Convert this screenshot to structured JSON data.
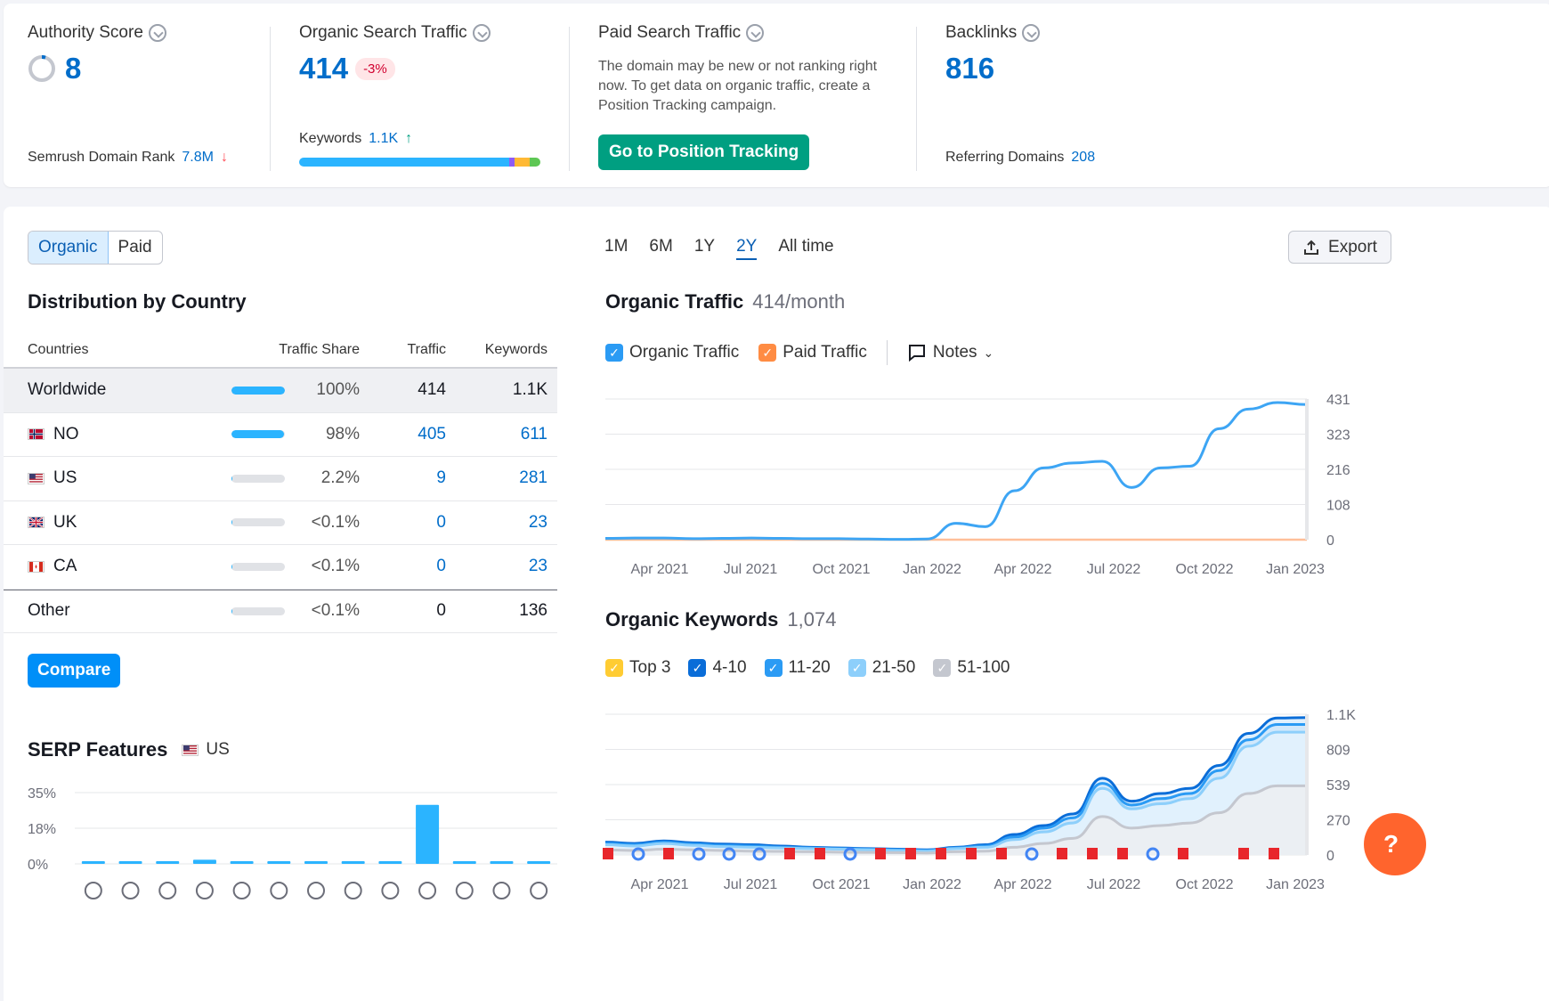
{
  "stats": {
    "authority": {
      "label": "Authority Score",
      "value": "8",
      "rank_label": "Semrush Domain Rank",
      "rank_value": "7.8M"
    },
    "organic": {
      "label": "Organic Search Traffic",
      "value": "414",
      "change": "-3%",
      "keywords_label": "Keywords",
      "keywords_value": "1.1K"
    },
    "paid": {
      "label": "Paid Search Traffic",
      "message": "The domain may be new or not ranking right now. To get data on organic traffic, create a Position Tracking campaign.",
      "button": "Go to Position Tracking"
    },
    "backlinks": {
      "label": "Backlinks",
      "value": "816",
      "ref_label": "Referring Domains",
      "ref_value": "208"
    }
  },
  "toggle": {
    "organic": "Organic",
    "paid": "Paid"
  },
  "distribution": {
    "title": "Distribution by Country",
    "headers": {
      "countries": "Countries",
      "share": "Traffic Share",
      "traffic": "Traffic",
      "keywords": "Keywords"
    },
    "rows": [
      {
        "name": "Worldwide",
        "share": "100%",
        "traffic": "414",
        "keywords": "1.1K",
        "fill": 1.0
      },
      {
        "name": "NO",
        "share": "98%",
        "traffic": "405",
        "keywords": "611",
        "fill": 0.98
      },
      {
        "name": "US",
        "share": "2.2%",
        "traffic": "9",
        "keywords": "281",
        "fill": 0.022
      },
      {
        "name": "UK",
        "share": "<0.1%",
        "traffic": "0",
        "keywords": "23",
        "fill": 0.001
      },
      {
        "name": "CA",
        "share": "<0.1%",
        "traffic": "0",
        "keywords": "23",
        "fill": 0.001
      },
      {
        "name": "Other",
        "share": "<0.1%",
        "traffic": "0",
        "keywords": "136",
        "fill": 0.001
      }
    ],
    "compare": "Compare"
  },
  "serp": {
    "title": "SERP Features",
    "country": "US",
    "ticks": [
      "35%",
      "18%",
      "0%"
    ],
    "values": [
      1,
      1,
      1,
      2,
      1,
      1,
      1,
      1,
      1,
      29,
      1,
      1,
      1
    ],
    "icons": [
      "graduation-cap",
      "location-pin",
      "article",
      "image-pack",
      "link",
      "star",
      "video",
      "video-carousel",
      "crown",
      "image",
      "play",
      "faq",
      "question"
    ]
  },
  "time_range": {
    "options": [
      "1M",
      "6M",
      "1Y",
      "2Y",
      "All time"
    ],
    "selected": "2Y"
  },
  "export": "Export",
  "traffic_chart": {
    "title": "Organic Traffic",
    "subtitle": "414/month",
    "legend": [
      {
        "name": "Organic Traffic",
        "color": "#2b9bf4"
      },
      {
        "name": "Paid Traffic",
        "color": "#ff8c43"
      }
    ],
    "notes": "Notes",
    "y_ticks": [
      "431",
      "323",
      "216",
      "108",
      "0"
    ],
    "x_ticks": [
      "Apr 2021",
      "Jul 2021",
      "Oct 2021",
      "Jan 2022",
      "Apr 2022",
      "Jul 2022",
      "Oct 2022",
      "Jan 2023"
    ]
  },
  "keywords_chart": {
    "title": "Organic Keywords",
    "subtitle": "1,074",
    "legend": [
      {
        "name": "Top 3",
        "color": "#ffcc33"
      },
      {
        "name": "4-10",
        "color": "#0a6dd8"
      },
      {
        "name": "11-20",
        "color": "#2b9bf4"
      },
      {
        "name": "21-50",
        "color": "#8dcffb"
      },
      {
        "name": "51-100",
        "color": "#c4c7cf"
      }
    ],
    "y_ticks": [
      "1.1K",
      "809",
      "539",
      "270",
      "0"
    ],
    "x_ticks": [
      "Apr 2021",
      "Jul 2021",
      "Oct 2021",
      "Jan 2022",
      "Apr 2022",
      "Jul 2022",
      "Oct 2022",
      "Jan 2023"
    ]
  },
  "chart_data": [
    {
      "type": "line",
      "title": "Organic Traffic",
      "ylim": [
        0,
        431
      ],
      "x": [
        "2021-02",
        "2021-03",
        "2021-04",
        "2021-05",
        "2021-06",
        "2021-07",
        "2021-08",
        "2021-09",
        "2021-10",
        "2021-11",
        "2021-12",
        "2022-01",
        "2022-02",
        "2022-03",
        "2022-04",
        "2022-05",
        "2022-06",
        "2022-07",
        "2022-08",
        "2022-09",
        "2022-10",
        "2022-11",
        "2022-12",
        "2023-01",
        "2023-02"
      ],
      "series": [
        {
          "name": "Organic Traffic",
          "values": [
            4,
            5,
            5,
            3,
            4,
            5,
            4,
            3,
            3,
            2,
            1,
            2,
            50,
            40,
            150,
            220,
            235,
            240,
            160,
            220,
            225,
            340,
            400,
            420,
            414
          ]
        },
        {
          "name": "Paid Traffic",
          "values": [
            0,
            0,
            0,
            0,
            0,
            0,
            0,
            0,
            0,
            0,
            0,
            0,
            0,
            0,
            0,
            0,
            0,
            0,
            0,
            0,
            0,
            0,
            0,
            0,
            0
          ]
        }
      ]
    },
    {
      "type": "area",
      "title": "Organic Keywords",
      "ylim": [
        0,
        1100
      ],
      "x": [
        "2021-02",
        "2021-03",
        "2021-04",
        "2021-05",
        "2021-06",
        "2021-07",
        "2021-08",
        "2021-09",
        "2021-10",
        "2021-11",
        "2021-12",
        "2022-01",
        "2022-02",
        "2022-03",
        "2022-04",
        "2022-05",
        "2022-06",
        "2022-07",
        "2022-08",
        "2022-09",
        "2022-10",
        "2022-11",
        "2022-12",
        "2023-01",
        "2023-02"
      ],
      "series": [
        {
          "name": "Top 3",
          "values": [
            0,
            0,
            0,
            0,
            0,
            0,
            0,
            0,
            0,
            0,
            0,
            0,
            0,
            0,
            0,
            0,
            0,
            0,
            0,
            0,
            0,
            0,
            0,
            0,
            0
          ]
        },
        {
          "name": "4-10",
          "values": [
            100,
            90,
            110,
            95,
            85,
            80,
            70,
            60,
            55,
            50,
            45,
            40,
            60,
            80,
            160,
            230,
            320,
            600,
            420,
            480,
            520,
            700,
            950,
            1070,
            1074
          ]
        },
        {
          "name": "11-20",
          "values": [
            90,
            80,
            100,
            85,
            75,
            70,
            60,
            55,
            50,
            45,
            40,
            35,
            55,
            70,
            140,
            210,
            290,
            560,
            390,
            440,
            480,
            660,
            900,
            1020,
            1020
          ]
        },
        {
          "name": "21-50",
          "values": [
            80,
            70,
            90,
            75,
            65,
            60,
            55,
            50,
            45,
            40,
            35,
            30,
            50,
            60,
            120,
            180,
            250,
            520,
            360,
            400,
            440,
            600,
            850,
            960,
            960
          ]
        },
        {
          "name": "51-100",
          "values": [
            40,
            35,
            45,
            40,
            35,
            30,
            28,
            25,
            22,
            20,
            18,
            15,
            25,
            30,
            60,
            90,
            130,
            300,
            210,
            230,
            250,
            330,
            480,
            540,
            540
          ]
        }
      ]
    },
    {
      "type": "bar",
      "title": "SERP Features",
      "ylim": [
        0,
        35
      ],
      "values": [
        1,
        1,
        1,
        2,
        1,
        1,
        1,
        1,
        1,
        29,
        1,
        1,
        1
      ]
    }
  ]
}
